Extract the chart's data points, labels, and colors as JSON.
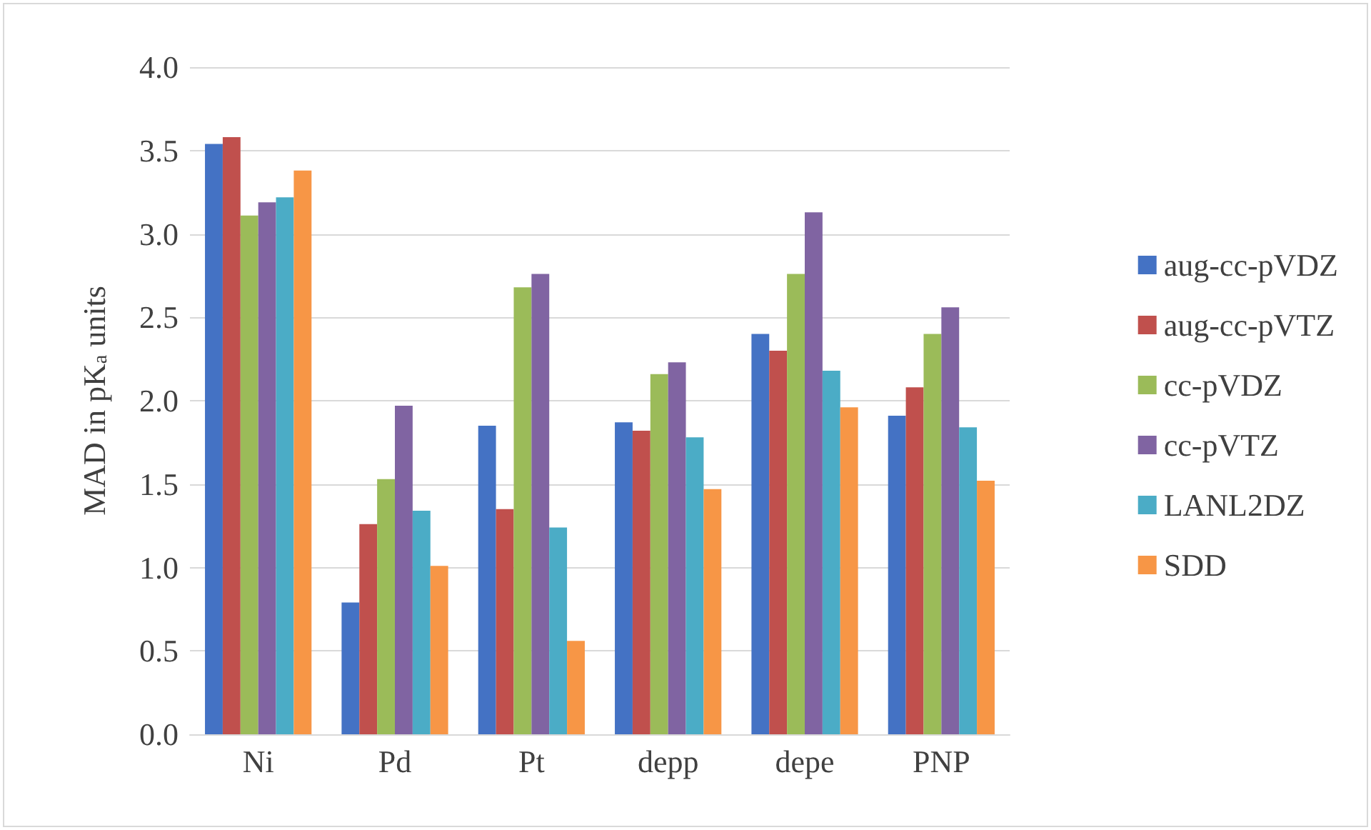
{
  "chart_data": {
    "type": "bar",
    "ylabel": "MAD in pK$_{a}$ units",
    "categories": [
      "Ni",
      "Pd",
      "Pt",
      "depp",
      "depe",
      "PNP"
    ],
    "series": [
      {
        "name": "aug-cc-pVDZ",
        "color": "#4472c4",
        "values": [
          3.54,
          0.79,
          1.85,
          1.87,
          2.4,
          1.91
        ]
      },
      {
        "name": "aug-cc-pVTZ",
        "color": "#c0504d",
        "values": [
          3.58,
          1.26,
          1.35,
          1.82,
          2.3,
          2.08
        ]
      },
      {
        "name": "cc-pVDZ",
        "color": "#9bbb59",
        "values": [
          3.11,
          1.53,
          2.68,
          2.16,
          2.76,
          2.4
        ]
      },
      {
        "name": "cc-pVTZ",
        "color": "#8064a2",
        "values": [
          3.19,
          1.97,
          2.76,
          2.23,
          3.13,
          2.56
        ]
      },
      {
        "name": "LANL2DZ",
        "color": "#4bacc6",
        "values": [
          3.22,
          1.34,
          1.24,
          1.78,
          2.18,
          1.84
        ]
      },
      {
        "name": "SDD",
        "color": "#f79646",
        "values": [
          3.38,
          1.01,
          0.56,
          1.47,
          1.96,
          1.52
        ]
      }
    ],
    "ylim": [
      0,
      4
    ],
    "yticks": [
      {
        "value": 0,
        "label": "0.0"
      },
      0.5,
      {
        "value": 1,
        "label": "1.0"
      },
      1.5,
      {
        "value": 2,
        "label": "2.0"
      },
      2.5,
      {
        "value": 3,
        "label": "3.0"
      },
      3.5,
      {
        "value": 4,
        "label": "4.0"
      }
    ],
    "grid": "y",
    "legend": "right"
  }
}
